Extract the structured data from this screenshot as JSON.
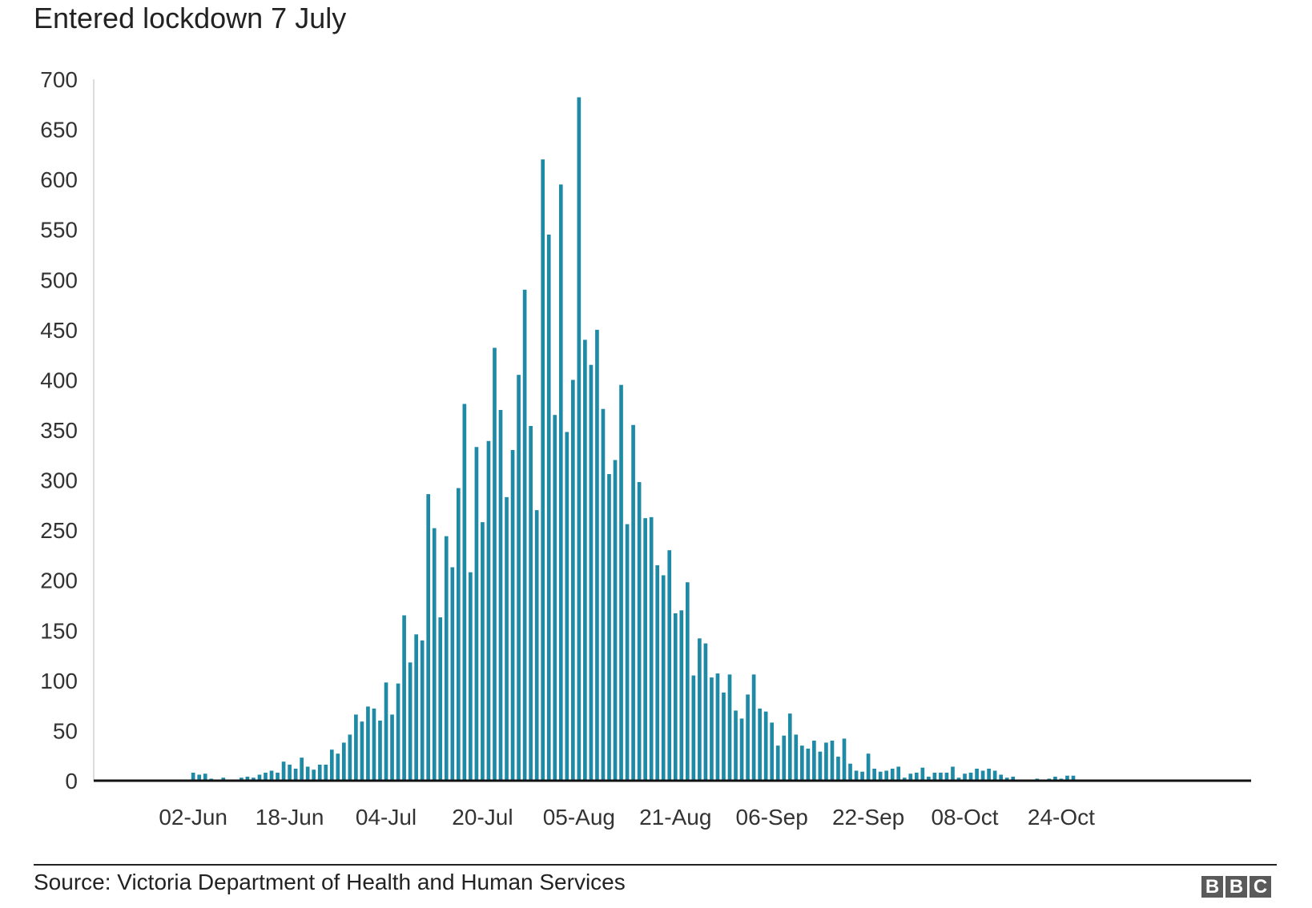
{
  "title": "Entered lockdown 7 July",
  "source": "Source: Victoria Department of Health and Human Services",
  "logo": [
    "B",
    "B",
    "C"
  ],
  "colors": {
    "bar": "#1f8aa6",
    "axis": "#111111"
  },
  "chart_data": {
    "type": "bar",
    "title": "Entered lockdown 7 July",
    "xlabel": "",
    "ylabel": "",
    "ylim": [
      0,
      700
    ],
    "yticks": [
      0,
      50,
      100,
      150,
      200,
      250,
      300,
      350,
      400,
      450,
      500,
      550,
      600,
      650,
      700
    ],
    "grid": false,
    "start_date": "2020-05-17",
    "x_tick_labels": [
      {
        "label": "02-Jun",
        "date": "2020-06-02"
      },
      {
        "label": "18-Jun",
        "date": "2020-06-18"
      },
      {
        "label": "04-Jul",
        "date": "2020-07-04"
      },
      {
        "label": "20-Jul",
        "date": "2020-07-20"
      },
      {
        "label": "05-Aug",
        "date": "2020-08-05"
      },
      {
        "label": "21-Aug",
        "date": "2020-08-21"
      },
      {
        "label": "06-Sep",
        "date": "2020-09-06"
      },
      {
        "label": "22-Sep",
        "date": "2020-09-22"
      },
      {
        "label": "08-Oct",
        "date": "2020-10-08"
      },
      {
        "label": "24-Oct",
        "date": "2020-10-24"
      }
    ],
    "values": [
      0,
      0,
      0,
      0,
      0,
      0,
      0,
      0,
      0,
      0,
      0,
      0,
      0,
      0,
      0,
      0,
      8,
      6,
      7,
      2,
      1,
      3,
      1,
      0,
      3,
      4,
      3,
      6,
      8,
      10,
      8,
      19,
      16,
      12,
      23,
      14,
      11,
      16,
      16,
      31,
      27,
      38,
      46,
      66,
      59,
      74,
      72,
      60,
      98,
      66,
      97,
      165,
      118,
      146,
      140,
      286,
      252,
      163,
      244,
      213,
      292,
      376,
      208,
      333,
      258,
      339,
      432,
      370,
      283,
      330,
      405,
      490,
      354,
      270,
      620,
      545,
      365,
      595,
      348,
      400,
      682,
      440,
      415,
      450,
      371,
      306,
      320,
      395,
      256,
      355,
      298,
      262,
      263,
      215,
      205,
      230,
      167,
      170,
      198,
      105,
      142,
      137,
      103,
      107,
      88,
      106,
      70,
      62,
      86,
      106,
      72,
      69,
      58,
      35,
      45,
      67,
      46,
      35,
      32,
      40,
      29,
      38,
      40,
      24,
      42,
      17,
      10,
      9,
      27,
      12,
      9,
      10,
      12,
      14,
      3,
      7,
      8,
      13,
      4,
      8,
      8,
      8,
      14,
      3,
      7,
      8,
      12,
      10,
      12,
      10,
      6,
      3,
      4,
      1,
      1,
      1,
      2,
      1,
      2,
      4,
      2,
      5,
      5,
      0,
      0,
      0,
      0,
      0,
      0,
      0,
      0,
      0,
      0,
      0,
      0,
      0,
      0,
      0,
      0,
      0,
      0,
      0,
      0,
      0,
      0,
      0,
      0,
      0,
      0,
      0,
      0,
      0
    ]
  }
}
